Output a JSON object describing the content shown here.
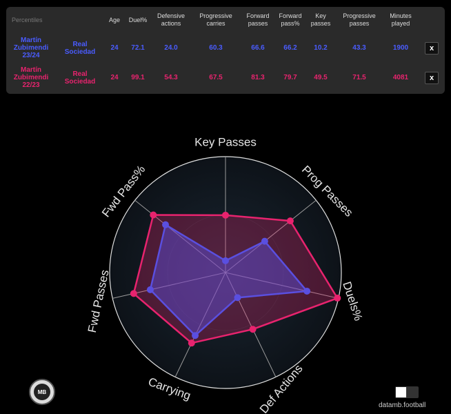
{
  "table": {
    "headers": [
      "Percentiles",
      "",
      "Age",
      "Duel%",
      "Defensive actions",
      "Progressive carries",
      "Forward passes",
      "Forward pass%",
      "Key passes",
      "Progressive passes",
      "Minutes played",
      ""
    ],
    "rows": [
      {
        "player": "Martín Zubimendi 23/24",
        "team": "Real Sociedad",
        "age": "24",
        "duel_pct": "72.1",
        "def_actions": "24.0",
        "prog_carries": "60.3",
        "fwd_passes": "66.6",
        "fwd_pass_pct": "66.2",
        "key_passes": "10.2",
        "prog_passes": "43.3",
        "minutes": "1900",
        "close": "x",
        "color": "#4a5cff"
      },
      {
        "player": "Martín Zubimendi 22/23",
        "team": "Real Sociedad",
        "age": "24",
        "duel_pct": "99.1",
        "def_actions": "54.3",
        "prog_carries": "67.5",
        "fwd_passes": "81.3",
        "fwd_pass_pct": "79.7",
        "key_passes": "49.5",
        "prog_passes": "71.5",
        "minutes": "4081",
        "close": "x",
        "color": "#e8236e"
      }
    ]
  },
  "chart_data": {
    "type": "radar",
    "axes": [
      "Key Passes",
      "Prog Passes",
      "Duels%",
      "Def Actions",
      "Carrying",
      "Fwd Passes",
      "Fwd Pass%"
    ],
    "range": [
      0,
      100
    ],
    "series": [
      {
        "name": "Martín Zubimendi 23/24",
        "color": "#5a4fe0",
        "values": [
          10.2,
          43.3,
          72.1,
          24.0,
          60.3,
          66.6,
          66.2
        ]
      },
      {
        "name": "Martín Zubimendi 22/23",
        "color": "#e8236e",
        "values": [
          49.5,
          71.5,
          99.1,
          54.3,
          67.5,
          81.3,
          79.7
        ]
      }
    ]
  },
  "branding": {
    "logo_text": "MB",
    "credit": "datamb.football"
  }
}
